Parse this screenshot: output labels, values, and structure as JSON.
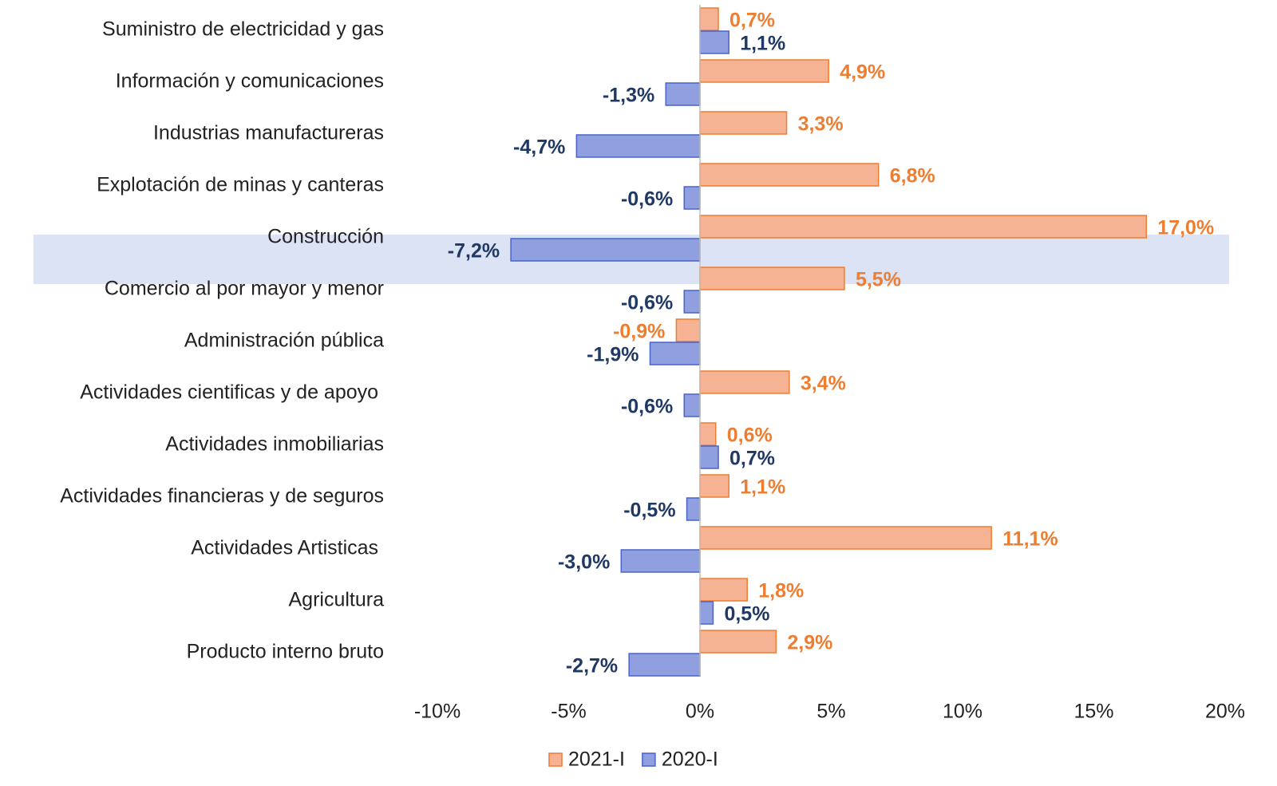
{
  "chart_data": {
    "type": "barh",
    "categories": [
      "Suministro de electricidad y gas",
      "Información y comunicaciones",
      "Industrias manufactureras",
      "Explotación de minas y canteras",
      "Construcción",
      "Comercio al por mayor y menor",
      "Administración pública",
      "Actividades cientificas y de apoyo ",
      "Actividades inmobiliarias",
      "Actividades financieras y de seguros",
      "Actividades Artisticas ",
      "Agricultura",
      "Producto interno bruto"
    ],
    "series": [
      {
        "name": "2021-I",
        "color": "#f6b394",
        "edge": "#ed7d31",
        "label_color": "#ed7d31",
        "values": [
          0.7,
          4.9,
          3.3,
          6.8,
          17.0,
          5.5,
          -0.9,
          3.4,
          0.6,
          1.1,
          11.1,
          1.8,
          2.9
        ],
        "value_labels": [
          "0,7%",
          "4,9%",
          "3,3%",
          "6,8%",
          "17,0%",
          "5,5%",
          "-0,9%",
          "3,4%",
          "0,6%",
          "1,1%",
          "11,1%",
          "1,8%",
          "2,9%"
        ]
      },
      {
        "name": "2020-I",
        "color": "#8f9fe0",
        "edge": "#4a64c8",
        "label_color": "#1f3864",
        "values": [
          1.1,
          -1.3,
          -4.7,
          -0.6,
          -7.2,
          -0.6,
          -1.9,
          -0.6,
          0.7,
          -0.5,
          -3.0,
          0.5,
          -2.7
        ],
        "value_labels": [
          "1,1%",
          "-1,3%",
          "-4,7%",
          "-0,6%",
          "-7,2%",
          "-0,6%",
          "-1,9%",
          "-0,6%",
          "0,7%",
          "-0,5%",
          "-3,0%",
          "0,5%",
          "-2,7%"
        ]
      }
    ],
    "xlim": [
      -10,
      20
    ],
    "xticks": [
      {
        "value": -10,
        "label": "-10%"
      },
      {
        "value": -5,
        "label": "-5%"
      },
      {
        "value": 0,
        "label": "0%"
      },
      {
        "value": 5,
        "label": "5%"
      },
      {
        "value": 10,
        "label": "10%"
      },
      {
        "value": 15,
        "label": "15%"
      },
      {
        "value": 20,
        "label": "20%"
      }
    ],
    "legend": "bottom"
  }
}
